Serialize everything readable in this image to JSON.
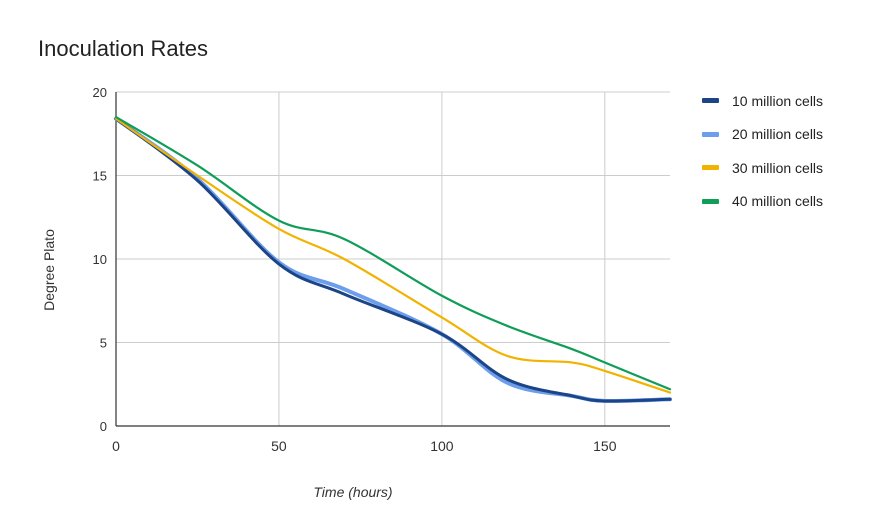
{
  "chart_data": {
    "type": "line",
    "title": "Inoculation Rates",
    "xlabel": "Time (hours)",
    "ylabel": "Degree Plato",
    "xlim": [
      0,
      170
    ],
    "ylim": [
      0,
      20
    ],
    "xticks": [
      0,
      50,
      100,
      150
    ],
    "yticks": [
      0,
      5,
      10,
      15,
      20
    ],
    "grid": true,
    "legend_position": "right",
    "x": [
      0,
      25,
      50,
      70,
      100,
      120,
      140,
      150,
      170
    ],
    "series": [
      {
        "name": "10 million cells",
        "color": "#1c4587",
        "values": [
          18.4,
          14.7,
          9.7,
          7.9,
          5.5,
          2.8,
          1.8,
          1.5,
          1.6
        ]
      },
      {
        "name": "20 million cells",
        "color": "#6d9eeb",
        "values": [
          18.4,
          14.8,
          9.8,
          8.2,
          5.5,
          2.6,
          1.8,
          1.5,
          1.6
        ]
      },
      {
        "name": "30 million cells",
        "color": "#f1b300",
        "values": [
          18.4,
          15.0,
          11.8,
          10.0,
          6.5,
          4.2,
          3.8,
          3.3,
          2.0
        ]
      },
      {
        "name": "40 million cells",
        "color": "#0f9d58",
        "values": [
          18.5,
          15.6,
          12.3,
          11.2,
          7.8,
          6.0,
          4.6,
          3.8,
          2.2
        ]
      }
    ]
  }
}
